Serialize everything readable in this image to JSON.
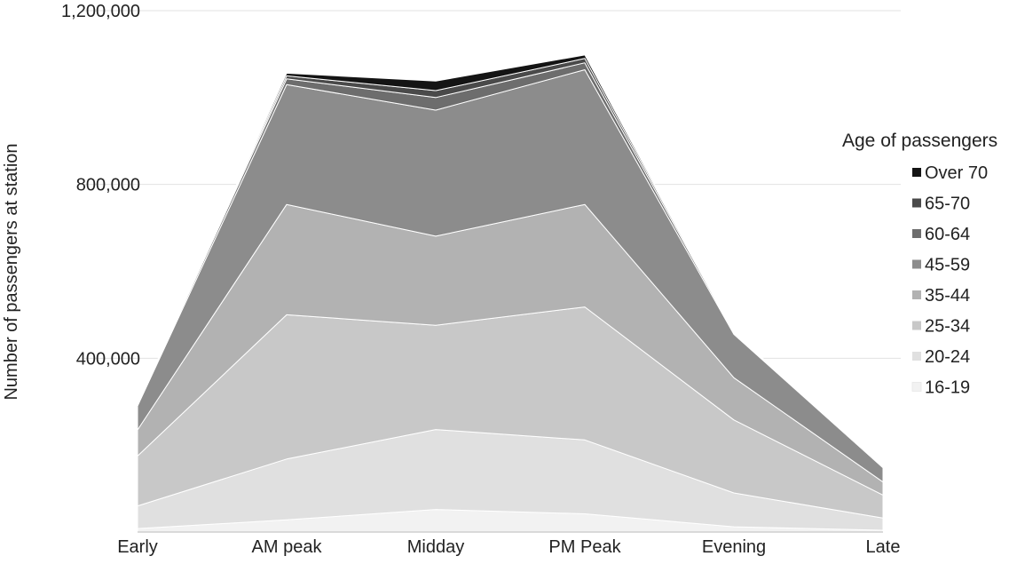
{
  "chart_data": {
    "type": "area",
    "stacked": true,
    "title": "",
    "xlabel": "",
    "ylabel": "Number of passengers at station",
    "categories": [
      "Early",
      "AM peak",
      "Midday",
      "PM Peak",
      "Evening",
      "Late"
    ],
    "ylim": [
      0,
      1200000
    ],
    "yticks": [
      {
        "value": 400000,
        "label": "400,000"
      },
      {
        "value": 800000,
        "label": "800,000"
      },
      {
        "value": 1200000,
        "label": "1,200,000"
      }
    ],
    "grid": true,
    "legend": {
      "title": "Age of passengers",
      "position": "right"
    },
    "series": [
      {
        "name": "16-19",
        "color": "#f2f2f2",
        "values": [
          8000,
          28000,
          52000,
          42000,
          12000,
          4000
        ]
      },
      {
        "name": "20-24",
        "color": "#e0e0e0",
        "values": [
          52000,
          140000,
          184000,
          170000,
          78000,
          28000
        ]
      },
      {
        "name": "25-34",
        "color": "#c8c8c8",
        "values": [
          115000,
          332000,
          240000,
          306000,
          168000,
          53000
        ]
      },
      {
        "name": "35-44",
        "color": "#b2b2b2",
        "values": [
          60000,
          254000,
          205000,
          236000,
          97000,
          30000
        ]
      },
      {
        "name": "45-59",
        "color": "#8c8c8c",
        "values": [
          55000,
          276000,
          290000,
          310000,
          100000,
          33000
        ]
      },
      {
        "name": "60-64",
        "color": "#6d6d6d",
        "values": [
          2000,
          13000,
          29000,
          16000,
          3000,
          1000
        ]
      },
      {
        "name": "65-70",
        "color": "#4a4a4a",
        "values": [
          1000,
          7000,
          16000,
          10000,
          1500,
          800
        ]
      },
      {
        "name": "Over 70",
        "color": "#141414",
        "values": [
          1000,
          6000,
          22000,
          8000,
          500,
          200
        ]
      }
    ]
  }
}
